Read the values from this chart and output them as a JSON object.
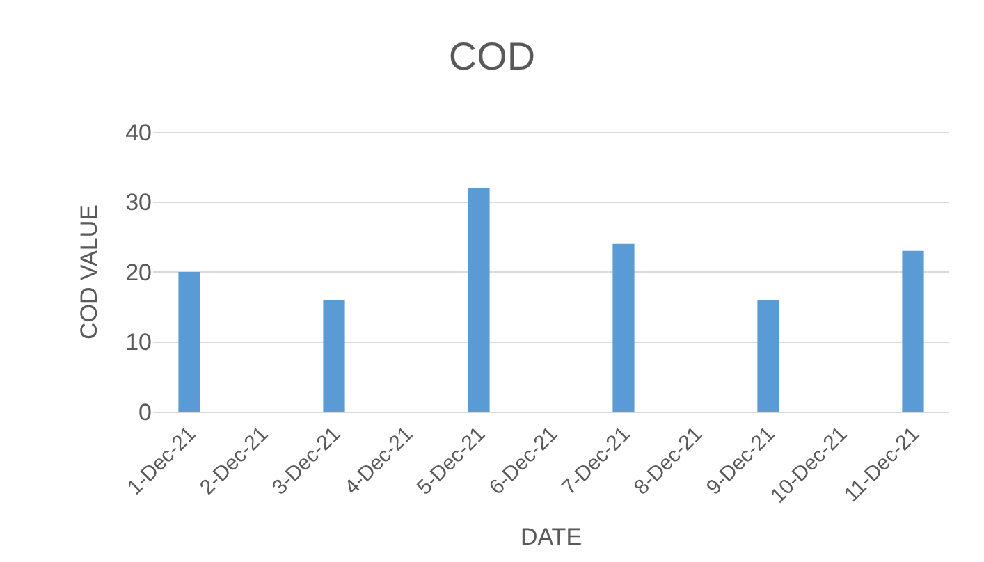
{
  "chart_data": {
    "type": "bar",
    "title": "COD",
    "xlabel": "DATE",
    "ylabel": "COD VALUE",
    "categories": [
      "1-Dec-21",
      "2-Dec-21",
      "3-Dec-21",
      "4-Dec-21",
      "5-Dec-21",
      "6-Dec-21",
      "7-Dec-21",
      "8-Dec-21",
      "9-Dec-21",
      "10-Dec-21",
      "11-Dec-21"
    ],
    "values": [
      20,
      null,
      16,
      null,
      32,
      null,
      24,
      null,
      16,
      null,
      23
    ],
    "color": "#5b9bd5",
    "ylim": [
      0,
      40
    ],
    "yticks": [
      0,
      10,
      20,
      30,
      40
    ],
    "grid": "y"
  }
}
